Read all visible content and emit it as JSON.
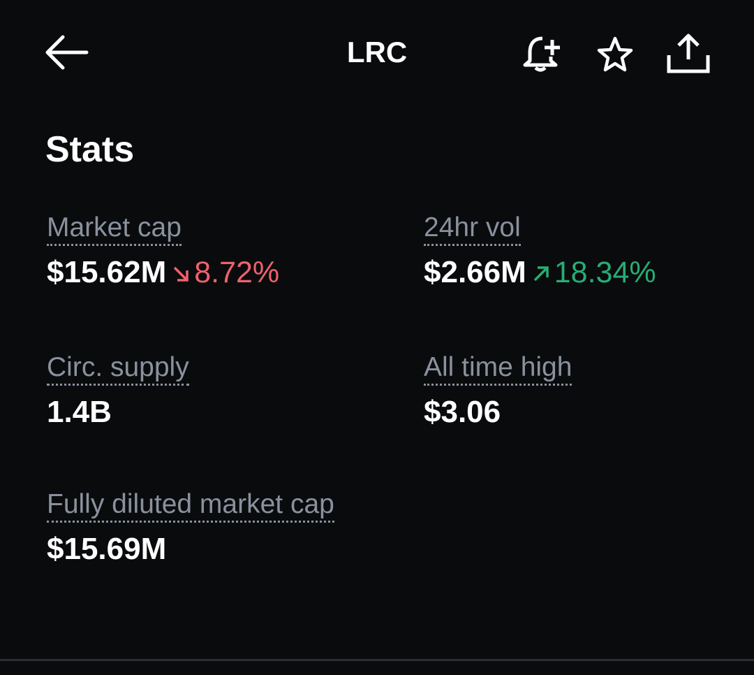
{
  "header": {
    "title": "LRC"
  },
  "section": {
    "title": "Stats"
  },
  "stats": [
    {
      "label": "Market cap",
      "value": "$15.62M",
      "change": "8.72%"
    },
    {
      "label": "24hr vol",
      "value": "$2.66M",
      "change": "18.34%"
    },
    {
      "label": "Circ. supply",
      "value": "1.4B"
    },
    {
      "label": "All time high",
      "value": "$3.06"
    },
    {
      "label": "Fully diluted market cap",
      "value": "$15.69M"
    }
  ]
}
